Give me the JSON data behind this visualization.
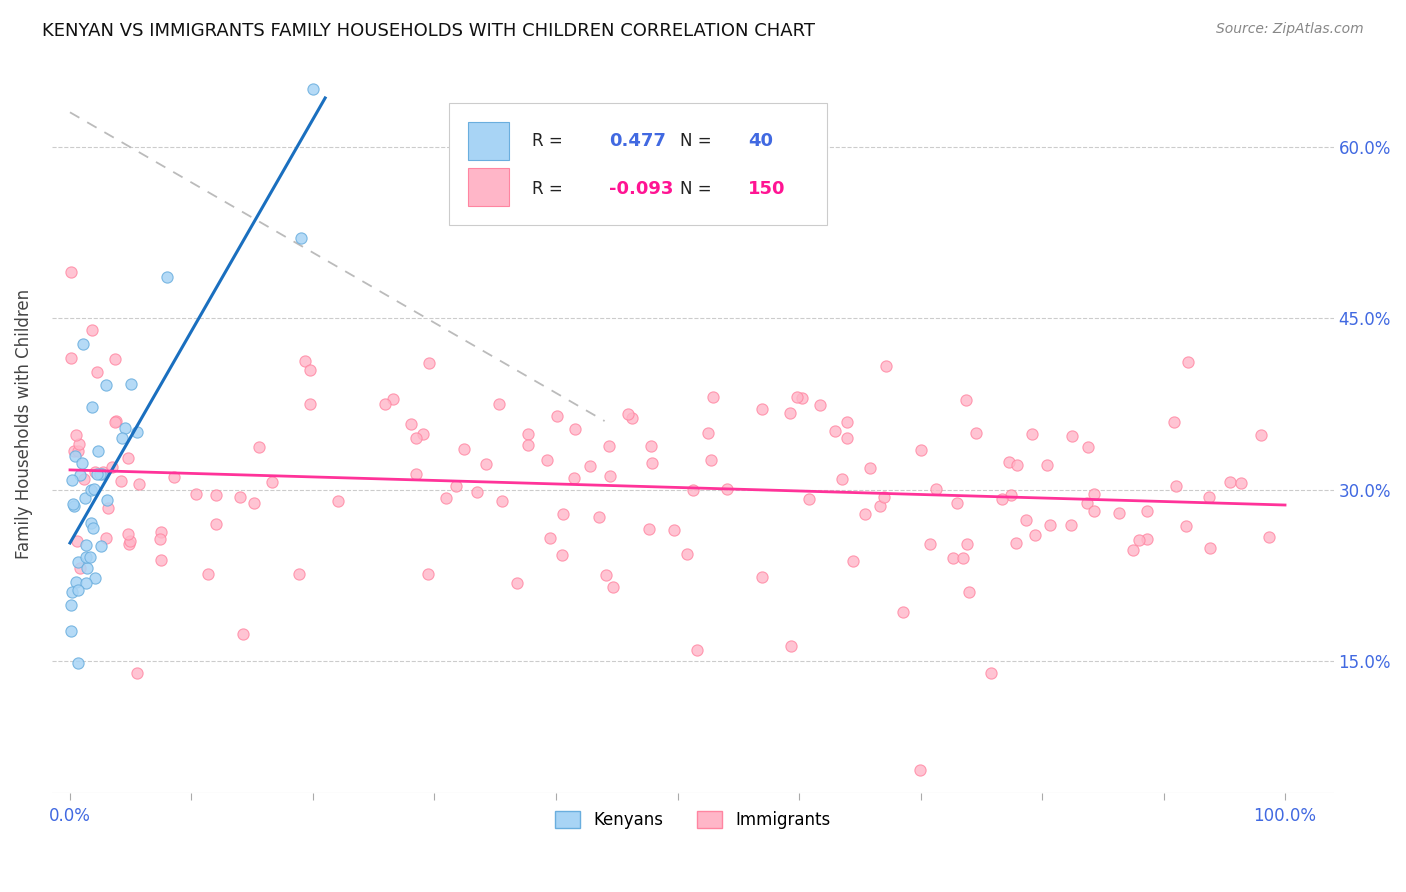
{
  "title": "KENYAN VS IMMIGRANTS FAMILY HOUSEHOLDS WITH CHILDREN CORRELATION CHART",
  "source": "Source: ZipAtlas.com",
  "ylabel": "Family Households with Children",
  "y_ticks": [
    0.15,
    0.3,
    0.45,
    0.6
  ],
  "y_tick_labels": [
    "15.0%",
    "30.0%",
    "45.0%",
    "60.0%"
  ],
  "kenyan_R": 0.477,
  "kenyan_N": 40,
  "immigrant_R": -0.093,
  "immigrant_N": 150,
  "kenyan_color": "#A8D4F5",
  "kenyan_edge_color": "#6AAEDE",
  "immigrant_color": "#FFB6C8",
  "immigrant_edge_color": "#FF85A1",
  "trend_kenyan_color": "#1A6FBF",
  "trend_immigrant_color": "#FF3399",
  "background_color": "#FFFFFF",
  "blue_text_color": "#4169E1",
  "pink_text_color": "#FF1493"
}
